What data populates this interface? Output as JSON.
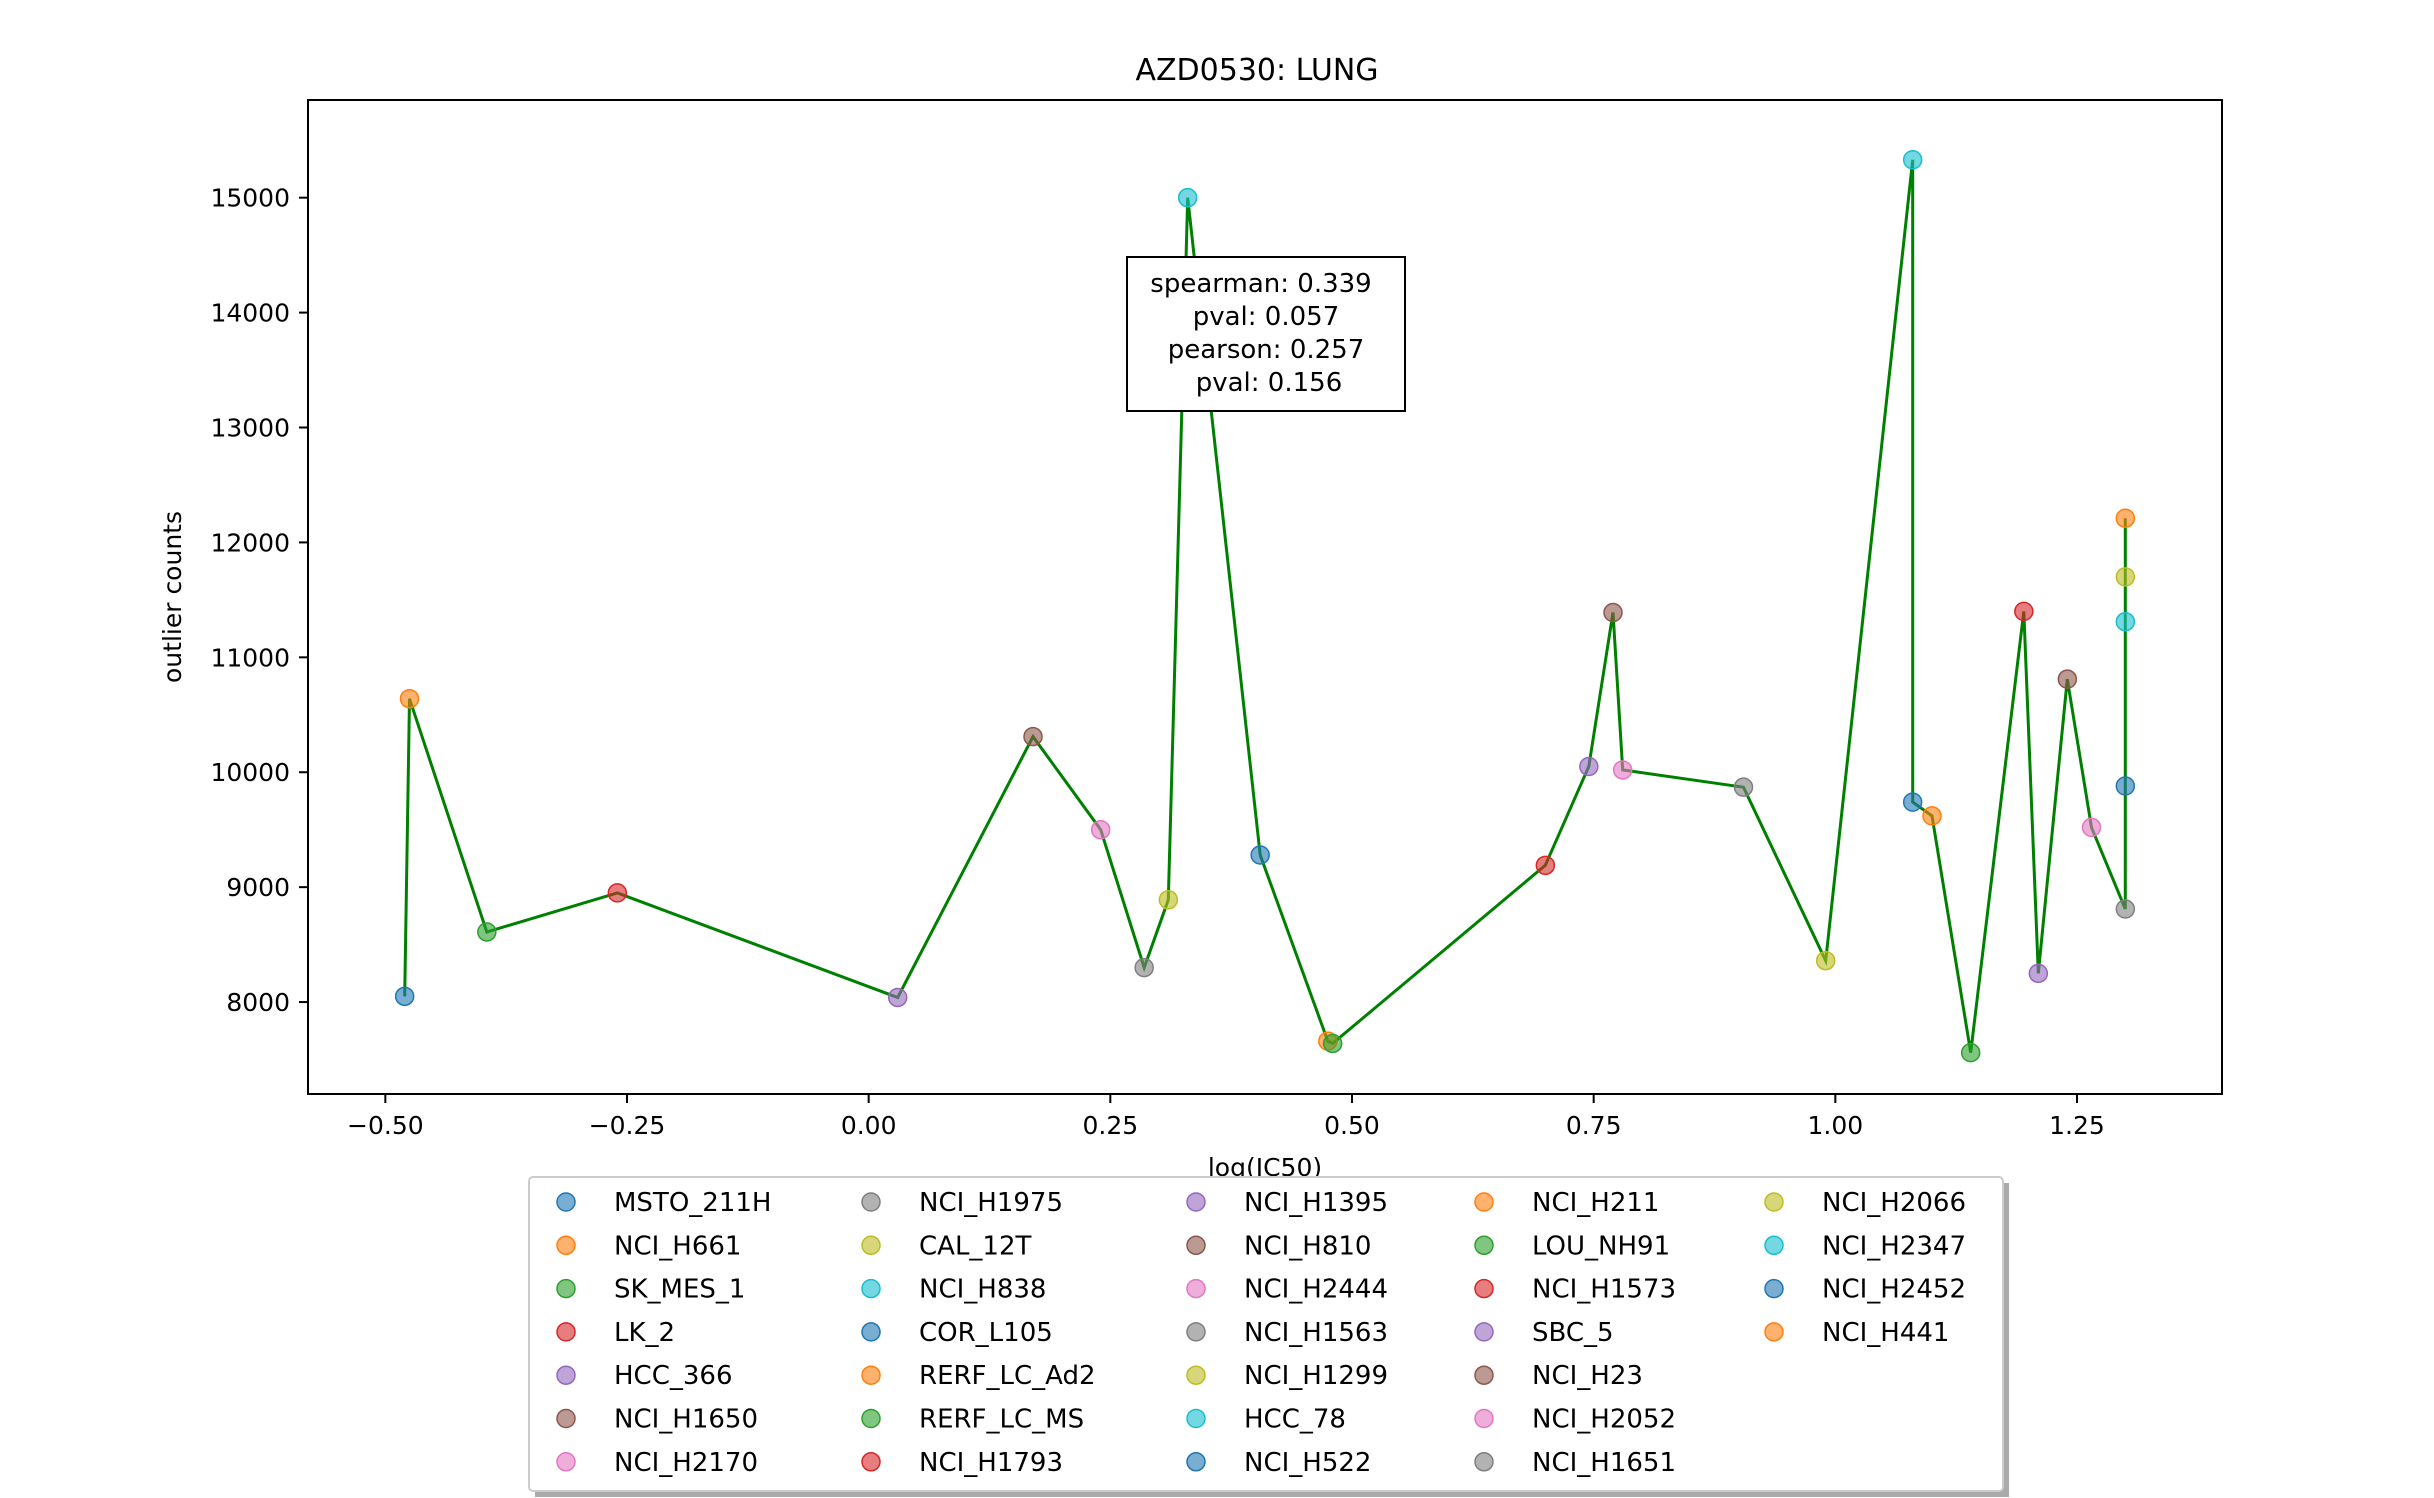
{
  "chart_data": {
    "type": "scatter",
    "title": "AZD0530: LUNG",
    "xlabel": "log(IC50)",
    "ylabel": "outlier counts",
    "xlim": [
      -0.58,
      1.4
    ],
    "ylim": [
      7200,
      15850
    ],
    "x_ticks": [
      -0.5,
      -0.25,
      0.0,
      0.25,
      0.5,
      0.75,
      1.0,
      1.25
    ],
    "x_tick_labels": [
      "−0.50",
      "−0.25",
      "0.00",
      "0.25",
      "0.50",
      "0.75",
      "1.00",
      "1.25"
    ],
    "y_ticks": [
      8000,
      9000,
      10000,
      11000,
      12000,
      13000,
      14000,
      15000
    ],
    "y_tick_labels": [
      "8000",
      "9000",
      "10000",
      "11000",
      "12000",
      "13000",
      "14000",
      "15000"
    ],
    "grid": false,
    "legend_placement": "below",
    "line_color": "#008000",
    "stats": {
      "lines": [
        "spearman: 0.339",
        "pval: 0.057",
        "pearson: 0.257",
        "pval: 0.156"
      ]
    },
    "series": [
      {
        "name": "MSTO_211H",
        "color": "#1f77b4",
        "x": -0.48,
        "y": 8050
      },
      {
        "name": "NCI_H661",
        "color": "#ff7f0e",
        "x": -0.475,
        "y": 10640
      },
      {
        "name": "SK_MES_1",
        "color": "#2ca02c",
        "x": -0.395,
        "y": 8610
      },
      {
        "name": "LK_2",
        "color": "#d62728",
        "x": -0.26,
        "y": 8950
      },
      {
        "name": "HCC_366",
        "color": "#9467bd",
        "x": 0.03,
        "y": 8040
      },
      {
        "name": "NCI_H1650",
        "color": "#8c564b",
        "x": 0.17,
        "y": 10310
      },
      {
        "name": "NCI_H2170",
        "color": "#e377c2",
        "x": 0.24,
        "y": 9500
      },
      {
        "name": "NCI_H1975",
        "color": "#7f7f7f",
        "x": 0.285,
        "y": 8300
      },
      {
        "name": "CAL_12T",
        "color": "#bcbd22",
        "x": 0.31,
        "y": 8890
      },
      {
        "name": "NCI_H838",
        "color": "#17becf",
        "x": 0.33,
        "y": 15000
      },
      {
        "name": "COR_L105",
        "color": "#1f77b4",
        "x": 0.405,
        "y": 9280
      },
      {
        "name": "RERF_LC_Ad2",
        "color": "#ff7f0e",
        "x": 0.475,
        "y": 7660
      },
      {
        "name": "RERF_LC_MS",
        "color": "#2ca02c",
        "x": 0.48,
        "y": 7640
      },
      {
        "name": "NCI_H1793",
        "color": "#d62728",
        "x": 0.7,
        "y": 9190
      },
      {
        "name": "NCI_H1395",
        "color": "#9467bd",
        "x": 0.745,
        "y": 10050
      },
      {
        "name": "NCI_H810",
        "color": "#8c564b",
        "x": 0.77,
        "y": 11390
      },
      {
        "name": "NCI_H2444",
        "color": "#e377c2",
        "x": 0.78,
        "y": 10020
      },
      {
        "name": "NCI_H1563",
        "color": "#7f7f7f",
        "x": 0.905,
        "y": 9870
      },
      {
        "name": "NCI_H1299",
        "color": "#bcbd22",
        "x": 0.99,
        "y": 8360
      },
      {
        "name": "HCC_78",
        "color": "#17becf",
        "x": 1.08,
        "y": 15330
      },
      {
        "name": "NCI_H522",
        "color": "#1f77b4",
        "x": 1.08,
        "y": 9740
      },
      {
        "name": "NCI_H211",
        "color": "#ff7f0e",
        "x": 1.1,
        "y": 9620
      },
      {
        "name": "LOU_NH91",
        "color": "#2ca02c",
        "x": 1.14,
        "y": 7560
      },
      {
        "name": "NCI_H1573",
        "color": "#d62728",
        "x": 1.195,
        "y": 11400
      },
      {
        "name": "SBC_5",
        "color": "#9467bd",
        "x": 1.21,
        "y": 8250
      },
      {
        "name": "NCI_H23",
        "color": "#8c564b",
        "x": 1.24,
        "y": 10810
      },
      {
        "name": "NCI_H2052",
        "color": "#e377c2",
        "x": 1.265,
        "y": 9520
      },
      {
        "name": "NCI_H1651",
        "color": "#7f7f7f",
        "x": 1.3,
        "y": 8810
      },
      {
        "name": "NCI_H2066",
        "color": "#bcbd22",
        "x": 1.3,
        "y": 11700
      },
      {
        "name": "NCI_H2347",
        "color": "#17becf",
        "x": 1.3,
        "y": 11310
      },
      {
        "name": "NCI_H2452",
        "color": "#1f77b4",
        "x": 1.3,
        "y": 9880
      },
      {
        "name": "NCI_H441",
        "color": "#ff7f0e",
        "x": 1.3,
        "y": 12210
      }
    ],
    "line_order": [
      "MSTO_211H",
      "NCI_H661",
      "SK_MES_1",
      "LK_2",
      "HCC_366",
      "NCI_H1650",
      "NCI_H2170",
      "NCI_H1975",
      "CAL_12T",
      "NCI_H838",
      "COR_L105",
      "RERF_LC_Ad2",
      "RERF_LC_MS",
      "NCI_H1793",
      "NCI_H1395",
      "NCI_H810",
      "NCI_H2444",
      "NCI_H1563",
      "NCI_H1299",
      "HCC_78",
      "NCI_H522",
      "NCI_H211",
      "LOU_NH91",
      "NCI_H1573",
      "SBC_5",
      "NCI_H23",
      "NCI_H2052",
      "NCI_H1651",
      "NCI_H2452",
      "NCI_H2347",
      "NCI_H2066",
      "NCI_H441"
    ]
  }
}
